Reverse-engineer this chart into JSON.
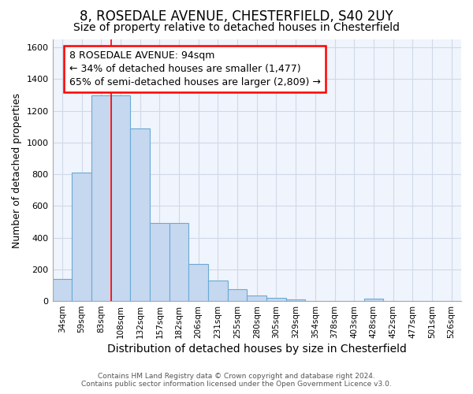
{
  "title1": "8, ROSEDALE AVENUE, CHESTERFIELD, S40 2UY",
  "title2": "Size of property relative to detached houses in Chesterfield",
  "xlabel": "Distribution of detached houses by size in Chesterfield",
  "ylabel": "Number of detached properties",
  "footnote": "Contains HM Land Registry data © Crown copyright and database right 2024.\nContains public sector information licensed under the Open Government Licence v3.0.",
  "bar_labels": [
    "34sqm",
    "59sqm",
    "83sqm",
    "108sqm",
    "132sqm",
    "157sqm",
    "182sqm",
    "206sqm",
    "231sqm",
    "255sqm",
    "280sqm",
    "305sqm",
    "329sqm",
    "354sqm",
    "378sqm",
    "403sqm",
    "428sqm",
    "452sqm",
    "477sqm",
    "501sqm",
    "526sqm"
  ],
  "bar_values": [
    140,
    810,
    1295,
    1295,
    1090,
    490,
    490,
    235,
    130,
    75,
    35,
    20,
    10,
    0,
    0,
    0,
    15,
    0,
    0,
    0,
    0
  ],
  "bar_color": "#c5d8f0",
  "bar_edge_color": "#6aaad4",
  "background_color": "#f0f4fc",
  "red_line_x": 2.5,
  "annotation_text": "8 ROSEDALE AVENUE: 94sqm\n← 34% of detached houses are smaller (1,477)\n65% of semi-detached houses are larger (2,809) →",
  "ylim": [
    0,
    1650
  ],
  "yticks": [
    0,
    200,
    400,
    600,
    800,
    1000,
    1200,
    1400,
    1600
  ],
  "title1_fontsize": 12,
  "title2_fontsize": 10,
  "annotation_fontsize": 9,
  "xlabel_fontsize": 10,
  "ylabel_fontsize": 9,
  "grid_color": "#d0d8e8"
}
